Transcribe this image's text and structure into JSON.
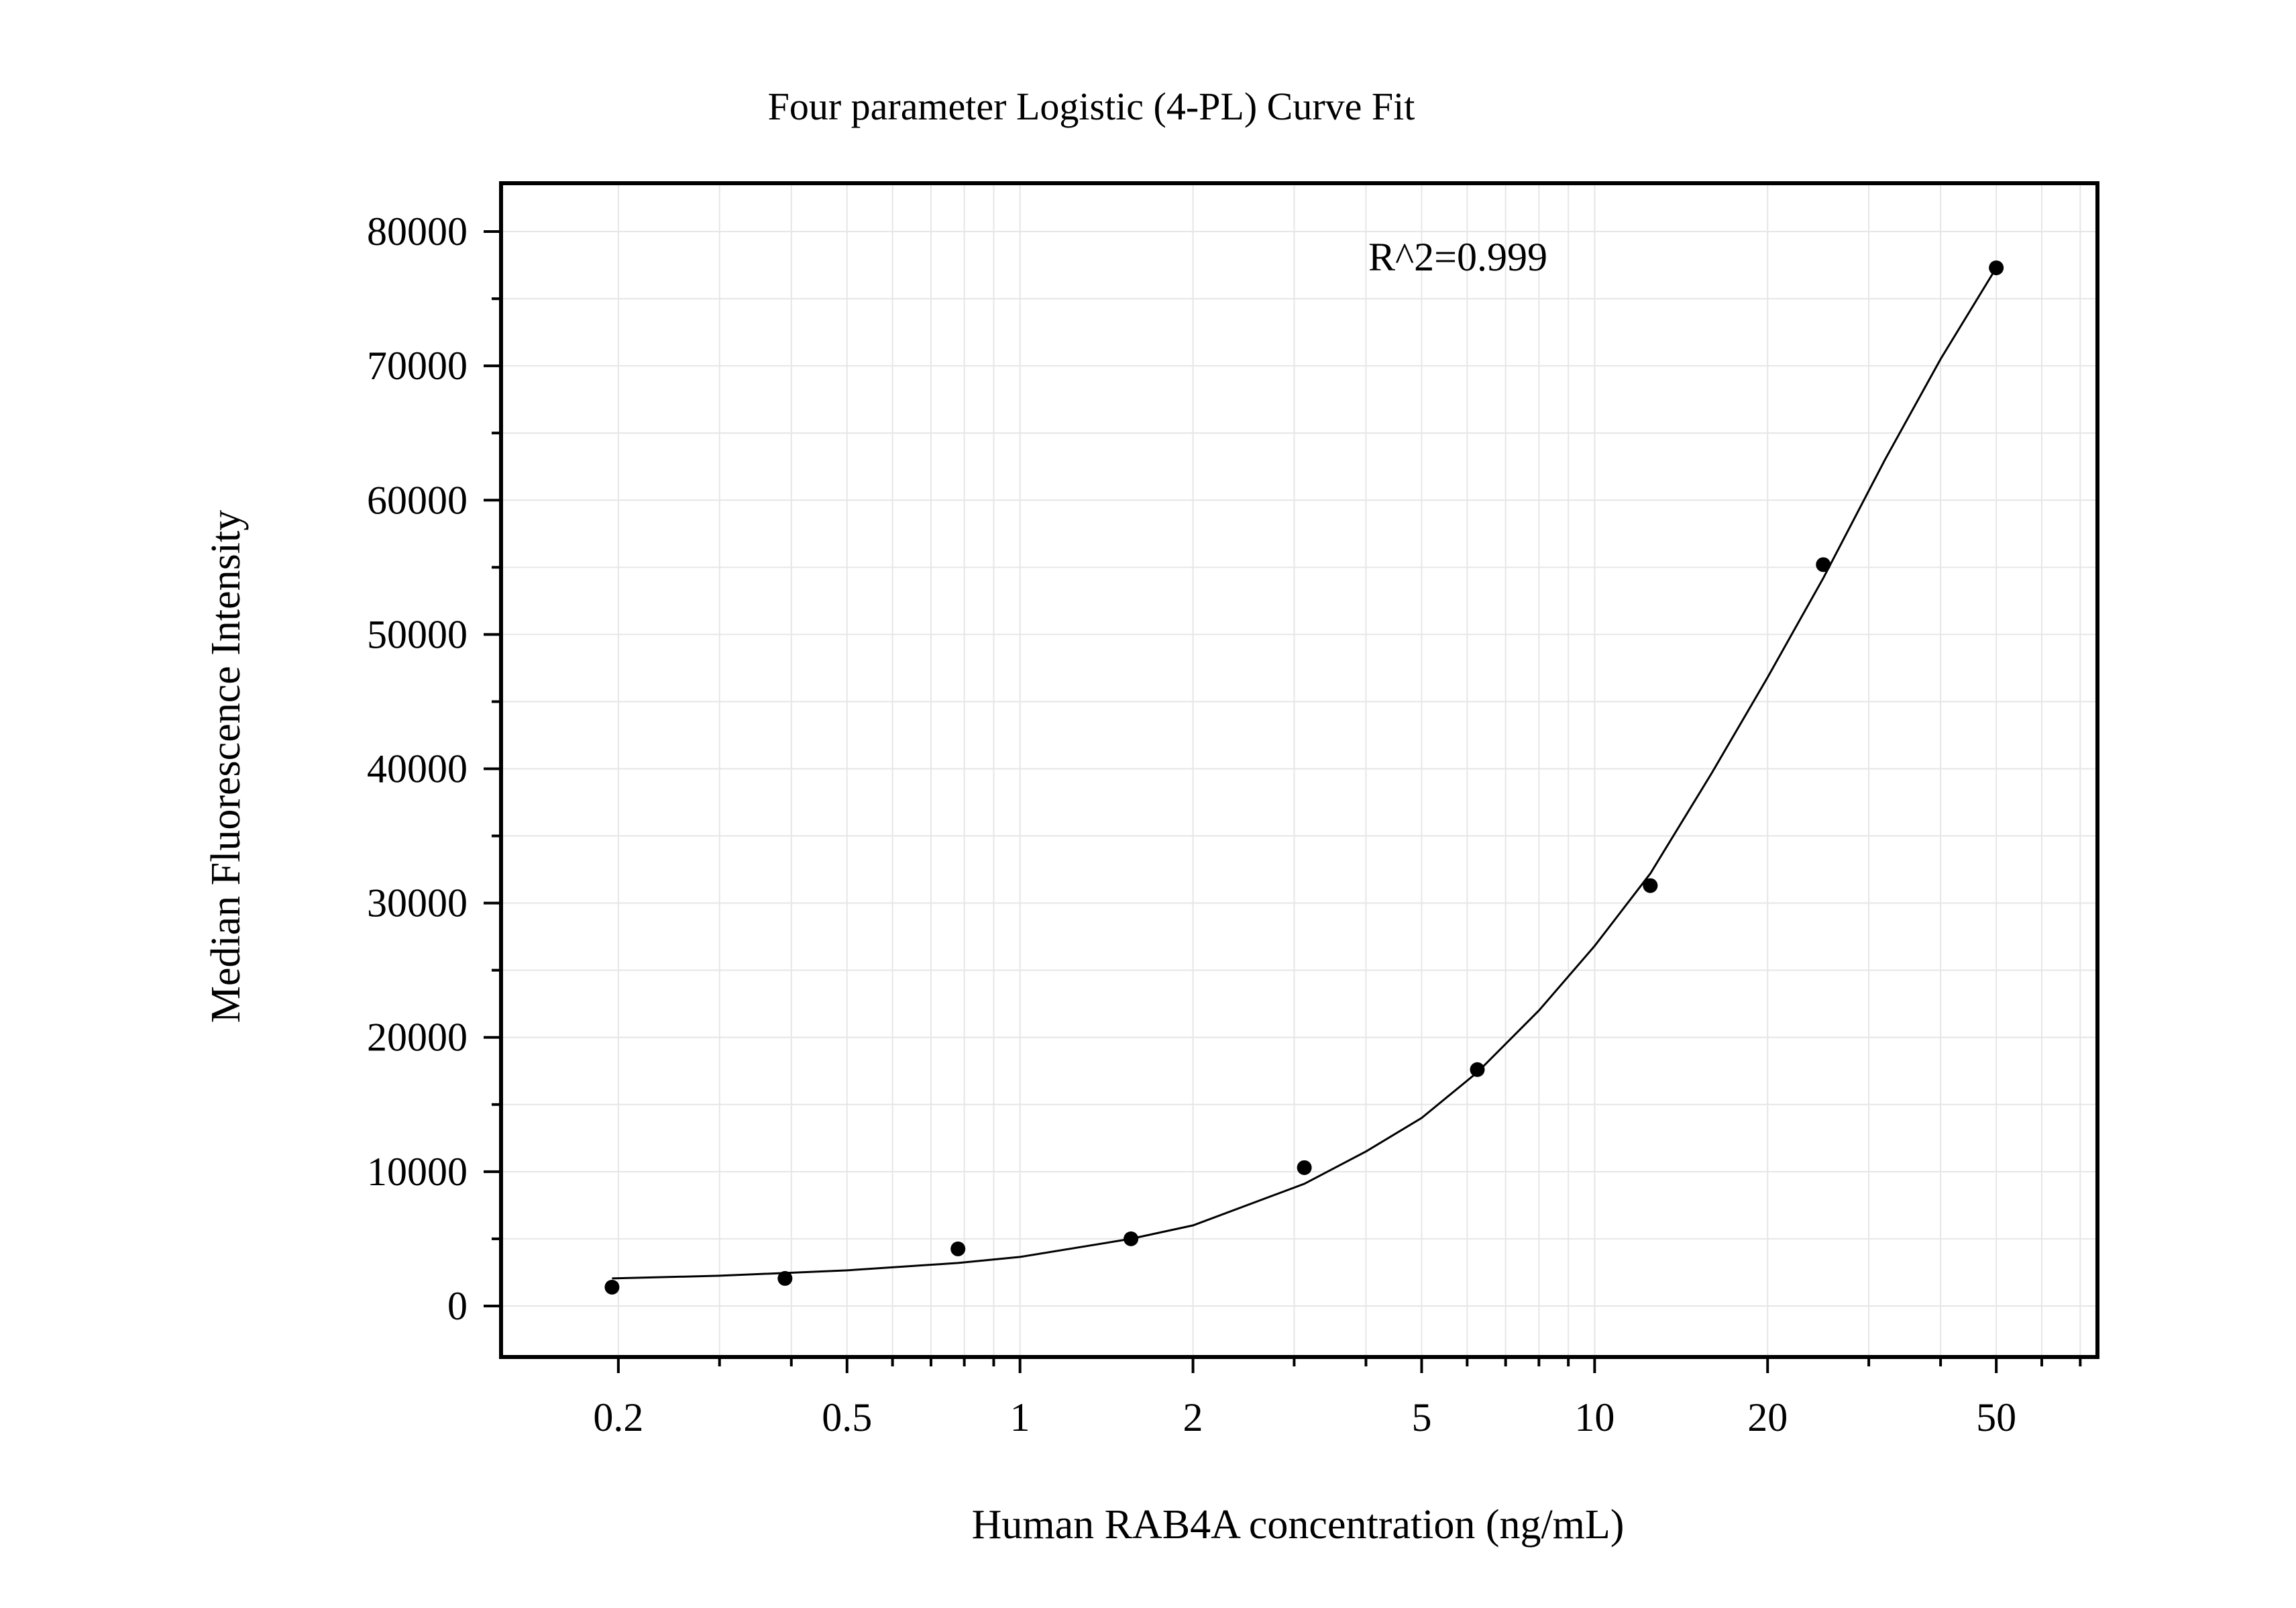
{
  "chart_data": {
    "type": "scatter",
    "title": "Four parameter Logistic (4-PL) Curve Fit",
    "xlabel": "Human RAB4A concentration (ng/mL)",
    "ylabel": "Median Fluorescence Intensity",
    "x_scale": "log",
    "xlim": [
      0.125,
      75
    ],
    "ylim": [
      -3800,
      83600
    ],
    "x_ticks": [
      0.2,
      0.5,
      1,
      2,
      5,
      10,
      20,
      50
    ],
    "x_tick_labels": [
      "0.2",
      "0.5",
      "1",
      "2",
      "5",
      "10",
      "20",
      "50"
    ],
    "y_ticks": [
      0,
      10000,
      20000,
      30000,
      40000,
      50000,
      60000,
      70000,
      80000
    ],
    "y_tick_labels": [
      "0",
      "10000",
      "20000",
      "30000",
      "40000",
      "50000",
      "60000",
      "70000",
      "80000"
    ],
    "grid": true,
    "annotation": "R^2=0.999",
    "series": [
      {
        "points": [
          {
            "x": 0.195,
            "y": 1400
          },
          {
            "x": 0.39,
            "y": 2050
          },
          {
            "x": 0.78,
            "y": 4250
          },
          {
            "x": 1.56,
            "y": 5000
          },
          {
            "x": 3.125,
            "y": 10300
          },
          {
            "x": 6.25,
            "y": 17600
          },
          {
            "x": 12.5,
            "y": 31300
          },
          {
            "x": 25,
            "y": 55200
          },
          {
            "x": 50,
            "y": 77300
          }
        ]
      }
    ],
    "fit_curve": {
      "points": [
        {
          "x": 0.195,
          "y": 2050
        },
        {
          "x": 0.3,
          "y": 2250
        },
        {
          "x": 0.5,
          "y": 2650
        },
        {
          "x": 0.78,
          "y": 3200
        },
        {
          "x": 1.0,
          "y": 3650
        },
        {
          "x": 1.56,
          "y": 5000
        },
        {
          "x": 2.0,
          "y": 6000
        },
        {
          "x": 3.125,
          "y": 9100
        },
        {
          "x": 4.0,
          "y": 11500
        },
        {
          "x": 5.0,
          "y": 14000
        },
        {
          "x": 6.25,
          "y": 17400
        },
        {
          "x": 8.0,
          "y": 22000
        },
        {
          "x": 10.0,
          "y": 26800
        },
        {
          "x": 12.5,
          "y": 32200
        },
        {
          "x": 16.0,
          "y": 39700
        },
        {
          "x": 20.0,
          "y": 46800
        },
        {
          "x": 25,
          "y": 54200
        },
        {
          "x": 32,
          "y": 63000
        },
        {
          "x": 40,
          "y": 70500
        },
        {
          "x": 50,
          "y": 77300
        }
      ]
    },
    "colors": {
      "points": "#000000",
      "curve": "#000000",
      "grid": "#e6e6e6",
      "frame": "#000000"
    }
  }
}
